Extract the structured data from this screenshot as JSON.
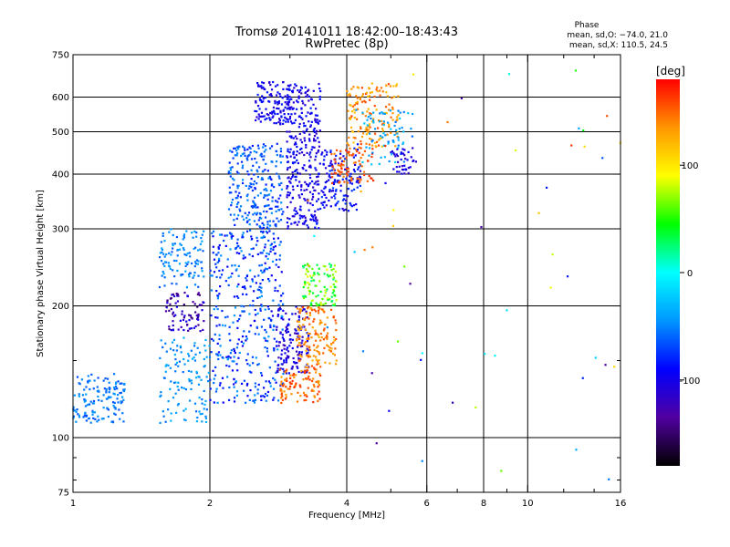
{
  "header": {
    "title": "Tromsø 20141011 18:42:00–18:43:43",
    "subtitle": "RwPretec (8p)",
    "phase_label": "Phase",
    "stats_o": "mean, sd,O: −74.0, 21.0",
    "stats_x": "mean, sd,X: 110.5, 24.5"
  },
  "chart_data": {
    "type": "scatter",
    "xlabel": "Frequency [MHz]",
    "ylabel": "Stationary phase Virtual Height [km]",
    "xscale": "log",
    "yscale": "log",
    "xlim": [
      1,
      16
    ],
    "ylim": [
      75,
      750
    ],
    "x_ticks": [
      1,
      2,
      4,
      6,
      8,
      10,
      16
    ],
    "y_ticks": [
      75,
      100,
      200,
      300,
      400,
      500,
      600,
      750
    ],
    "x_gridlines": [
      2,
      4,
      6,
      8,
      10
    ],
    "y_gridlines": [
      100,
      200,
      300,
      400,
      500,
      600
    ],
    "x_minor_ticks": [
      3,
      5,
      7,
      9,
      12,
      14
    ],
    "y_minor_ticks": [
      80,
      90,
      150
    ],
    "grid": true,
    "colorbar": {
      "label": "[deg]",
      "range": [
        -180,
        180
      ],
      "ticks": [
        100,
        0,
        -100
      ],
      "colors": [
        "#000000",
        "#5000a0",
        "#0000ff",
        "#0096ff",
        "#00ffff",
        "#00ff00",
        "#ffff00",
        "#ff9600",
        "#ff0000"
      ]
    },
    "clusters": [
      {
        "x": [
          1.0,
          1.3
        ],
        "y": [
          108,
          140
        ],
        "phase": [
          -70,
          -40
        ],
        "n": 140
      },
      {
        "x": [
          1.55,
          2.0
        ],
        "y": [
          108,
          170
        ],
        "phase": [
          -60,
          -30
        ],
        "n": 120
      },
      {
        "x": [
          1.55,
          1.95
        ],
        "y": [
          220,
          300
        ],
        "phase": [
          -65,
          -35
        ],
        "n": 110
      },
      {
        "x": [
          1.6,
          1.95
        ],
        "y": [
          175,
          215
        ],
        "phase": [
          -150,
          -95
        ],
        "n": 80
      },
      {
        "x": [
          2.0,
          2.9
        ],
        "y": [
          120,
          300
        ],
        "phase": [
          -100,
          -40
        ],
        "n": 420
      },
      {
        "x": [
          2.2,
          2.9
        ],
        "y": [
          300,
          470
        ],
        "phase": [
          -85,
          -45
        ],
        "n": 250
      },
      {
        "x": [
          2.5,
          3.0
        ],
        "y": [
          520,
          650
        ],
        "phase": [
          -115,
          -80
        ],
        "n": 120
      },
      {
        "x": [
          2.8,
          3.3
        ],
        "y": [
          140,
          200
        ],
        "phase": [
          -125,
          -85
        ],
        "n": 140
      },
      {
        "x": [
          2.95,
          3.5
        ],
        "y": [
          300,
          650
        ],
        "phase": [
          -120,
          -80
        ],
        "n": 320
      },
      {
        "x": [
          2.85,
          3.5
        ],
        "y": [
          120,
          145
        ],
        "phase": [
          130,
          170
        ],
        "n": 100
      },
      {
        "x": [
          3.1,
          3.8
        ],
        "y": [
          145,
          200
        ],
        "phase": [
          120,
          160
        ],
        "n": 150
      },
      {
        "x": [
          3.2,
          3.8
        ],
        "y": [
          200,
          250
        ],
        "phase": [
          20,
          90
        ],
        "n": 110
      },
      {
        "x": [
          3.5,
          4.3
        ],
        "y": [
          330,
          460
        ],
        "phase": [
          -110,
          -70
        ],
        "n": 140
      },
      {
        "x": [
          3.7,
          4.6
        ],
        "y": [
          380,
          460
        ],
        "phase": [
          140,
          170
        ],
        "n": 80
      },
      {
        "x": [
          4.0,
          5.2
        ],
        "y": [
          460,
          650
        ],
        "phase": [
          110,
          160
        ],
        "n": 150
      },
      {
        "x": [
          4.3,
          5.6
        ],
        "y": [
          420,
          560
        ],
        "phase": [
          -60,
          -20
        ],
        "n": 70
      },
      {
        "x": [
          5.0,
          5.7
        ],
        "y": [
          400,
          460
        ],
        "phase": [
          -130,
          -90
        ],
        "n": 40
      },
      {
        "x": [
          3.0,
          16.0
        ],
        "y": [
          80,
          700
        ],
        "phase": [
          -150,
          170
        ],
        "n": 55
      }
    ]
  }
}
